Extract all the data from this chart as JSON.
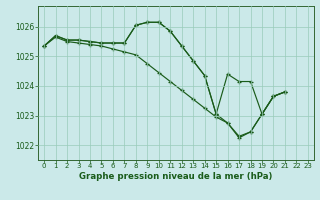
{
  "title": "Graphe pression niveau de la mer (hPa)",
  "background_color": "#cbe9e9",
  "grid_color": "#99ccbb",
  "line_color": "#1a5c1a",
  "xlim": [
    -0.5,
    23.5
  ],
  "ylim": [
    1021.5,
    1026.7
  ],
  "yticks": [
    1022,
    1023,
    1024,
    1025,
    1026
  ],
  "xticks": [
    0,
    1,
    2,
    3,
    4,
    5,
    6,
    7,
    8,
    9,
    10,
    11,
    12,
    13,
    14,
    15,
    16,
    17,
    18,
    19,
    20,
    21,
    22,
    23
  ],
  "line1_x": [
    0,
    1,
    2,
    3,
    4,
    5,
    6,
    7,
    8,
    9,
    10,
    11,
    12,
    13,
    14,
    15,
    16,
    17,
    18,
    19,
    20,
    21
  ],
  "line1_y": [
    1025.35,
    1025.7,
    1025.55,
    1025.55,
    1025.5,
    1025.45,
    1025.45,
    1025.45,
    1026.05,
    1026.15,
    1026.15,
    1025.85,
    1025.35,
    1024.85,
    1024.35,
    1023.05,
    1024.4,
    1024.15,
    1024.15,
    1023.05,
    1023.65,
    1023.8
  ],
  "line2_x": [
    0,
    1,
    2,
    3,
    4,
    5,
    6,
    7,
    8,
    9,
    10,
    11,
    12,
    13,
    14,
    15,
    16,
    17,
    18,
    19,
    20,
    21
  ],
  "line2_y": [
    1025.35,
    1025.7,
    1025.55,
    1025.55,
    1025.5,
    1025.45,
    1025.45,
    1025.45,
    1026.05,
    1026.15,
    1026.15,
    1025.85,
    1025.35,
    1024.85,
    1024.35,
    1023.05,
    1022.75,
    1022.25,
    1022.45,
    1023.05,
    1023.65,
    1023.8
  ],
  "line3_x": [
    0,
    1,
    2,
    3,
    4,
    5,
    6,
    7,
    8,
    9,
    10,
    11,
    12,
    13,
    14,
    15,
    16,
    17,
    18,
    19,
    20,
    21
  ],
  "line3_y": [
    1025.35,
    1025.65,
    1025.5,
    1025.45,
    1025.4,
    1025.35,
    1025.25,
    1025.15,
    1025.05,
    1024.75,
    1024.45,
    1024.15,
    1023.85,
    1023.55,
    1023.25,
    1022.95,
    1022.75,
    1022.3,
    1022.45,
    1023.05,
    1023.65,
    1023.8
  ]
}
